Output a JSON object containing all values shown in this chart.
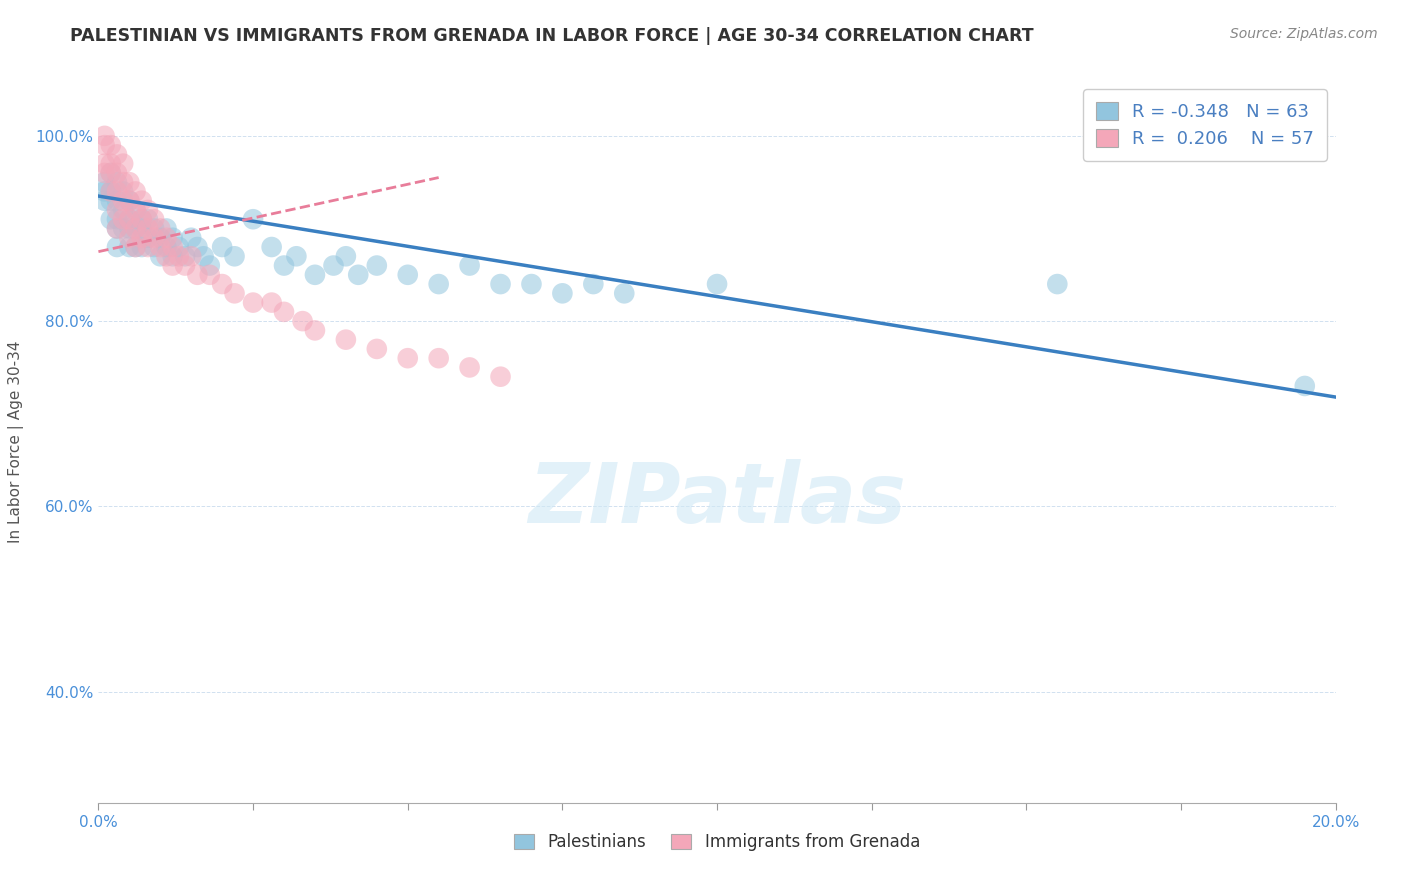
{
  "title": "PALESTINIAN VS IMMIGRANTS FROM GRENADA IN LABOR FORCE | AGE 30-34 CORRELATION CHART",
  "source": "Source: ZipAtlas.com",
  "ylabel_label": "In Labor Force | Age 30-34",
  "xmin": 0.0,
  "xmax": 0.2,
  "ymin": 0.28,
  "ymax": 1.06,
  "yticks": [
    0.4,
    0.6,
    0.8,
    1.0
  ],
  "ytick_labels": [
    "40.0%",
    "60.0%",
    "80.0%",
    "100.0%"
  ],
  "xticks": [
    0.0,
    0.025,
    0.05,
    0.075,
    0.1,
    0.125,
    0.15,
    0.175,
    0.2
  ],
  "xtick_labels_show": [
    "0.0%",
    "",
    "",
    "",
    "",
    "",
    "",
    "",
    "20.0%"
  ],
  "blue_color": "#92c5de",
  "pink_color": "#f4a7b9",
  "blue_line_color": "#3a7fc1",
  "pink_line_color": "#e87d9a",
  "legend_R_blue": "-0.348",
  "legend_N_blue": "63",
  "legend_R_pink": "0.206",
  "legend_N_pink": "57",
  "legend_label_blue": "Palestinians",
  "legend_label_pink": "Immigrants from Grenada",
  "watermark": "ZIPatlas",
  "blue_trend_x0": 0.0,
  "blue_trend_y0": 0.935,
  "blue_trend_x1": 0.2,
  "blue_trend_y1": 0.718,
  "pink_trend_x0": 0.0,
  "pink_trend_y0": 0.875,
  "pink_trend_x1": 0.055,
  "pink_trend_y1": 0.955,
  "blue_scatter_x": [
    0.001,
    0.001,
    0.001,
    0.002,
    0.002,
    0.002,
    0.002,
    0.003,
    0.003,
    0.003,
    0.003,
    0.003,
    0.004,
    0.004,
    0.004,
    0.005,
    0.005,
    0.005,
    0.005,
    0.006,
    0.006,
    0.006,
    0.007,
    0.007,
    0.007,
    0.008,
    0.008,
    0.009,
    0.009,
    0.01,
    0.01,
    0.011,
    0.011,
    0.012,
    0.012,
    0.013,
    0.014,
    0.015,
    0.016,
    0.017,
    0.018,
    0.02,
    0.022,
    0.025,
    0.028,
    0.03,
    0.032,
    0.035,
    0.038,
    0.04,
    0.042,
    0.045,
    0.05,
    0.055,
    0.06,
    0.065,
    0.07,
    0.075,
    0.08,
    0.085,
    0.1,
    0.155,
    0.195
  ],
  "blue_scatter_y": [
    0.95,
    0.94,
    0.93,
    0.96,
    0.94,
    0.93,
    0.91,
    0.95,
    0.93,
    0.91,
    0.9,
    0.88,
    0.94,
    0.92,
    0.9,
    0.93,
    0.91,
    0.9,
    0.88,
    0.92,
    0.9,
    0.88,
    0.91,
    0.9,
    0.88,
    0.91,
    0.89,
    0.9,
    0.88,
    0.89,
    0.87,
    0.9,
    0.88,
    0.89,
    0.87,
    0.88,
    0.87,
    0.89,
    0.88,
    0.87,
    0.86,
    0.88,
    0.87,
    0.91,
    0.88,
    0.86,
    0.87,
    0.85,
    0.86,
    0.87,
    0.85,
    0.86,
    0.85,
    0.84,
    0.86,
    0.84,
    0.84,
    0.83,
    0.84,
    0.83,
    0.84,
    0.84,
    0.73
  ],
  "pink_scatter_x": [
    0.001,
    0.001,
    0.001,
    0.001,
    0.002,
    0.002,
    0.002,
    0.002,
    0.003,
    0.003,
    0.003,
    0.003,
    0.003,
    0.004,
    0.004,
    0.004,
    0.004,
    0.005,
    0.005,
    0.005,
    0.005,
    0.006,
    0.006,
    0.006,
    0.006,
    0.007,
    0.007,
    0.007,
    0.008,
    0.008,
    0.008,
    0.009,
    0.009,
    0.01,
    0.01,
    0.011,
    0.011,
    0.012,
    0.012,
    0.013,
    0.014,
    0.015,
    0.016,
    0.018,
    0.02,
    0.022,
    0.025,
    0.028,
    0.03,
    0.033,
    0.035,
    0.04,
    0.045,
    0.05,
    0.055,
    0.06,
    0.065
  ],
  "pink_scatter_y": [
    1.0,
    0.99,
    0.97,
    0.96,
    0.99,
    0.97,
    0.96,
    0.94,
    0.98,
    0.96,
    0.94,
    0.92,
    0.9,
    0.97,
    0.95,
    0.93,
    0.91,
    0.95,
    0.93,
    0.91,
    0.89,
    0.94,
    0.92,
    0.9,
    0.88,
    0.93,
    0.91,
    0.89,
    0.92,
    0.9,
    0.88,
    0.91,
    0.89,
    0.9,
    0.88,
    0.89,
    0.87,
    0.88,
    0.86,
    0.87,
    0.86,
    0.87,
    0.85,
    0.85,
    0.84,
    0.83,
    0.82,
    0.82,
    0.81,
    0.8,
    0.79,
    0.78,
    0.77,
    0.76,
    0.76,
    0.75,
    0.74
  ]
}
